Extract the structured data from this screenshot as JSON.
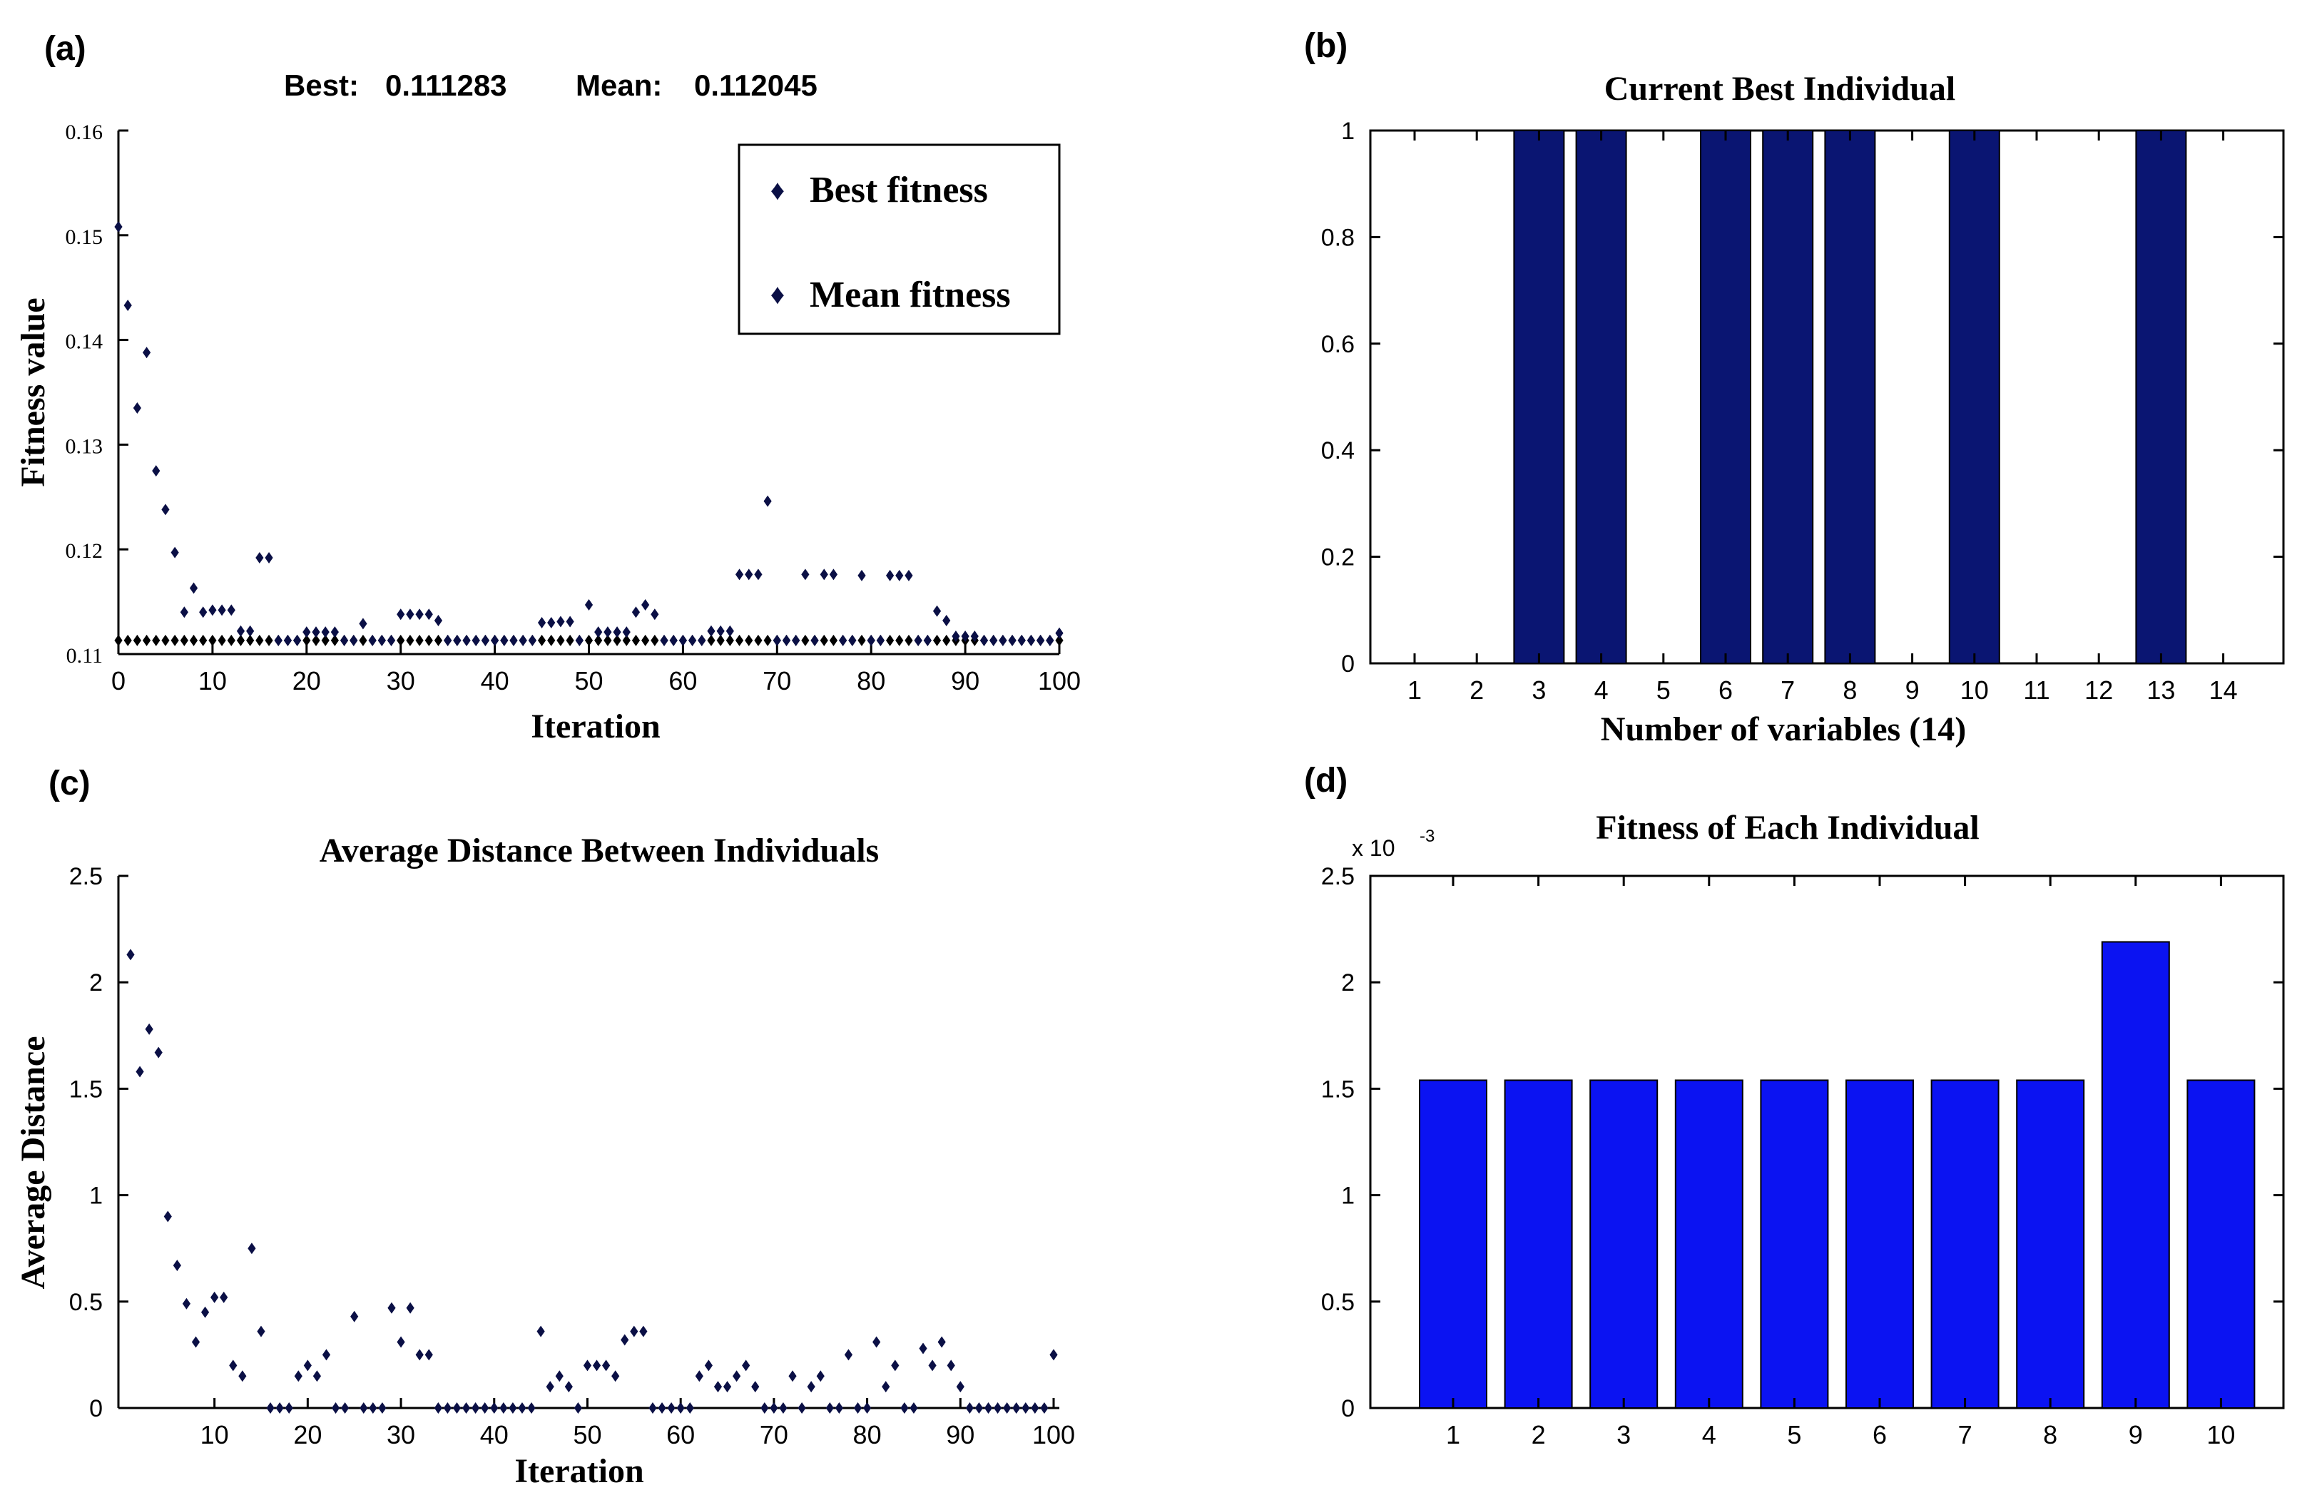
{
  "colors": {
    "navy": "#0a1572",
    "blue": "#0b13f2",
    "marker": "#0a0f45",
    "axis": "#000000"
  },
  "chart_data": [
    {
      "panel_label": "(a)",
      "type": "scatter",
      "title_parts": [
        "Best:",
        "0.111283",
        "Mean:",
        "0.112045"
      ],
      "xlabel": "Iteration",
      "ylabel": "Fitness value",
      "xlim": [
        0,
        100
      ],
      "ylim": [
        0.11,
        0.16
      ],
      "xticks": [
        0,
        10,
        20,
        30,
        40,
        50,
        60,
        70,
        80,
        90,
        100
      ],
      "xtick_labels": [
        "0",
        "10",
        "20",
        "30",
        "40",
        "50",
        "60",
        "70",
        "80",
        "90",
        "100"
      ],
      "yticks": [
        0.11,
        0.12,
        0.13,
        0.14,
        0.15,
        0.16
      ],
      "ytick_labels": [
        "0.11",
        "0.12",
        "0.13",
        "0.14",
        "0.15",
        "0.16"
      ],
      "legend": [
        "Best fitness",
        "Mean fitness"
      ],
      "legend_position": "top-right",
      "series": [
        {
          "name": "Best fitness",
          "x": [
            0,
            1,
            2,
            3,
            4,
            5,
            6,
            7,
            8,
            9,
            10,
            11,
            12,
            13,
            14,
            15,
            16,
            17,
            18,
            19,
            20,
            21,
            22,
            23,
            24,
            25,
            26,
            27,
            28,
            29,
            30,
            31,
            32,
            33,
            34,
            35,
            36,
            37,
            38,
            39,
            40,
            41,
            42,
            43,
            44,
            45,
            46,
            47,
            48,
            49,
            50,
            51,
            52,
            53,
            54,
            55,
            56,
            57,
            58,
            59,
            60,
            61,
            62,
            63,
            64,
            65,
            66,
            67,
            68,
            69,
            70,
            71,
            72,
            73,
            74,
            75,
            76,
            77,
            78,
            79,
            80,
            81,
            82,
            83,
            84,
            85,
            86,
            87,
            88,
            89,
            90,
            91,
            92,
            93,
            94,
            95,
            96,
            97,
            98,
            99,
            100
          ],
          "y": [
            0.1113,
            0.1113,
            0.1113,
            0.1113,
            0.1113,
            0.1113,
            0.1113,
            0.1113,
            0.1113,
            0.1113,
            0.1113,
            0.1113,
            0.1113,
            0.1113,
            0.1113,
            0.1113,
            0.1113,
            0.1113,
            0.1113,
            0.1113,
            0.1113,
            0.1113,
            0.1113,
            0.1113,
            0.1113,
            0.1113,
            0.1113,
            0.1113,
            0.1113,
            0.1113,
            0.1113,
            0.1113,
            0.1113,
            0.1113,
            0.1113,
            0.1113,
            0.1113,
            0.1113,
            0.1113,
            0.1113,
            0.1113,
            0.1113,
            0.1113,
            0.1113,
            0.1113,
            0.1113,
            0.1113,
            0.1113,
            0.1113,
            0.1113,
            0.1113,
            0.1113,
            0.1113,
            0.1113,
            0.1113,
            0.1113,
            0.1113,
            0.1113,
            0.1113,
            0.1113,
            0.1113,
            0.1113,
            0.1113,
            0.1113,
            0.1113,
            0.1113,
            0.1113,
            0.1113,
            0.1113,
            0.1113,
            0.1113,
            0.1113,
            0.1113,
            0.1113,
            0.1113,
            0.1113,
            0.1113,
            0.1113,
            0.1113,
            0.1113,
            0.1113,
            0.1113,
            0.1113,
            0.1113,
            0.1113,
            0.1113,
            0.1113,
            0.1113,
            0.1113,
            0.1113,
            0.1113,
            0.1113,
            0.1113,
            0.1113,
            0.1113,
            0.1113,
            0.1113,
            0.1113,
            0.1113,
            0.1113,
            0.1113
          ]
        },
        {
          "name": "Mean fitness",
          "x": [
            0,
            1,
            2,
            3,
            4,
            5,
            6,
            7,
            8,
            9,
            10,
            11,
            12,
            13,
            14,
            15,
            16,
            17,
            18,
            19,
            20,
            21,
            22,
            23,
            24,
            25,
            26,
            27,
            28,
            29,
            30,
            31,
            32,
            33,
            34,
            35,
            36,
            37,
            38,
            39,
            40,
            41,
            42,
            43,
            44,
            45,
            46,
            47,
            48,
            49,
            50,
            51,
            52,
            53,
            54,
            55,
            56,
            57,
            58,
            59,
            60,
            61,
            62,
            63,
            64,
            65,
            66,
            67,
            68,
            69,
            70,
            71,
            72,
            73,
            74,
            75,
            76,
            77,
            78,
            79,
            80,
            81,
            82,
            83,
            84,
            85,
            86,
            87,
            88,
            89,
            90,
            91,
            92,
            93,
            94,
            95,
            96,
            97,
            98,
            99,
            100
          ],
          "y": [
            0.1508,
            0.1433,
            0.1335,
            0.1388,
            0.1275,
            0.1238,
            0.1197,
            0.114,
            0.1163,
            0.114,
            0.1142,
            0.1142,
            0.1142,
            0.1122,
            0.1122,
            0.1192,
            0.1192,
            0.1113,
            0.1113,
            0.1113,
            0.1121,
            0.1121,
            0.1121,
            0.1121,
            0.1113,
            0.1113,
            0.1129,
            0.1113,
            0.1113,
            0.1113,
            0.1138,
            0.1138,
            0.1138,
            0.1138,
            0.1132,
            0.1113,
            0.1113,
            0.1113,
            0.1113,
            0.1113,
            0.1113,
            0.1113,
            0.1113,
            0.1113,
            0.1113,
            0.113,
            0.113,
            0.1131,
            0.1131,
            0.1113,
            0.1147,
            0.1121,
            0.1121,
            0.1121,
            0.1121,
            0.114,
            0.1147,
            0.1138,
            0.1113,
            0.1113,
            0.1113,
            0.1113,
            0.1113,
            0.1122,
            0.1122,
            0.1122,
            0.1176,
            0.1176,
            0.1176,
            0.1246,
            0.1113,
            0.1113,
            0.1113,
            0.1176,
            0.1113,
            0.1176,
            0.1176,
            0.1113,
            0.1113,
            0.1175,
            0.1113,
            0.1113,
            0.1175,
            0.1175,
            0.1175,
            0.1113,
            0.1113,
            0.1141,
            0.1132,
            0.1117,
            0.1117,
            0.1117,
            0.1113,
            0.1113,
            0.1113,
            0.1113,
            0.1113,
            0.1113,
            0.1113,
            0.1113,
            0.112
          ]
        }
      ]
    },
    {
      "panel_label": "(b)",
      "type": "bar",
      "title": "Current Best Individual",
      "xlabel": "Number of variables (14)",
      "ylabel": "",
      "categories": [
        "1",
        "2",
        "3",
        "4",
        "5",
        "6",
        "7",
        "8",
        "9",
        "10",
        "11",
        "12",
        "13",
        "14"
      ],
      "values": [
        0,
        0,
        1,
        1,
        0,
        1,
        1,
        1,
        0,
        1,
        0,
        0,
        1,
        0
      ],
      "ylim": [
        0,
        1
      ],
      "yticks": [
        0,
        0.2,
        0.4,
        0.6,
        0.8,
        1
      ],
      "ytick_labels": [
        "0",
        "0.2",
        "0.4",
        "0.6",
        "0.8",
        "1"
      ]
    },
    {
      "panel_label": "(c)",
      "type": "scatter",
      "title": "Average Distance Between Individuals",
      "xlabel": "Iteration",
      "ylabel": "Average Distance",
      "xlim": [
        0,
        100
      ],
      "ylim": [
        0,
        2.5
      ],
      "xticks": [
        10,
        20,
        30,
        40,
        50,
        60,
        70,
        80,
        90,
        100
      ],
      "xtick_labels": [
        "10",
        "20",
        "30",
        "40",
        "50",
        "60",
        "70",
        "80",
        "90",
        "100"
      ],
      "yticks": [
        0,
        0.5,
        1,
        1.5,
        2,
        2.5
      ],
      "ytick_labels": [
        "0",
        "0.5",
        "1",
        "1.5",
        "2",
        "2.5"
      ],
      "series": [
        {
          "name": "Average distance",
          "x": [
            1,
            2,
            3,
            4,
            5,
            6,
            7,
            8,
            9,
            10,
            11,
            12,
            13,
            14,
            15,
            16,
            17,
            18,
            19,
            20,
            21,
            22,
            23,
            24,
            25,
            26,
            27,
            28,
            29,
            30,
            31,
            32,
            33,
            34,
            35,
            36,
            37,
            38,
            39,
            40,
            41,
            42,
            43,
            44,
            45,
            46,
            47,
            48,
            49,
            50,
            51,
            52,
            53,
            54,
            55,
            56,
            57,
            58,
            59,
            60,
            61,
            62,
            63,
            64,
            65,
            66,
            67,
            68,
            69,
            70,
            71,
            72,
            73,
            74,
            75,
            76,
            77,
            78,
            79,
            80,
            81,
            82,
            83,
            84,
            85,
            86,
            87,
            88,
            89,
            90,
            91,
            92,
            93,
            94,
            95,
            96,
            97,
            98,
            99,
            100
          ],
          "y": [
            2.13,
            1.58,
            1.78,
            1.67,
            0.9,
            0.67,
            0.49,
            0.31,
            0.45,
            0.52,
            0.52,
            0.2,
            0.15,
            0.75,
            0.36,
            0,
            0,
            0,
            0.15,
            0.2,
            0.15,
            0.25,
            0,
            0,
            0.43,
            0,
            0,
            0,
            0.47,
            0.31,
            0.47,
            0.25,
            0.25,
            0,
            0,
            0,
            0,
            0,
            0,
            0,
            0,
            0,
            0,
            0,
            0.36,
            0.1,
            0.15,
            0.1,
            0,
            0.2,
            0.2,
            0.2,
            0.15,
            0.32,
            0.36,
            0.36,
            0,
            0,
            0,
            0,
            0,
            0.15,
            0.2,
            0.1,
            0.1,
            0.15,
            0.2,
            0.1,
            0,
            0,
            0,
            0.15,
            0,
            0.1,
            0.15,
            0,
            0,
            0.25,
            0,
            0,
            0.31,
            0.1,
            0.2,
            0,
            0,
            0.28,
            0.2,
            0.31,
            0.2,
            0.1,
            0,
            0,
            0,
            0,
            0,
            0,
            0,
            0,
            0,
            0.25
          ]
        }
      ]
    },
    {
      "panel_label": "(d)",
      "type": "bar",
      "title": "Fitness of Each Individual",
      "xlabel": "",
      "ylabel": "",
      "scale_base": "x 10",
      "scale_exp": "-3",
      "categories": [
        "1",
        "2",
        "3",
        "4",
        "5",
        "6",
        "7",
        "8",
        "9",
        "10"
      ],
      "values": [
        1.54,
        1.54,
        1.54,
        1.54,
        1.54,
        1.54,
        1.54,
        1.54,
        2.19,
        1.54
      ],
      "ylim": [
        0,
        2.5
      ],
      "yticks": [
        0,
        0.5,
        1,
        1.5,
        2,
        2.5
      ],
      "ytick_labels": [
        "0",
        "0.5",
        "1",
        "1.5",
        "2",
        "2.5"
      ]
    }
  ]
}
